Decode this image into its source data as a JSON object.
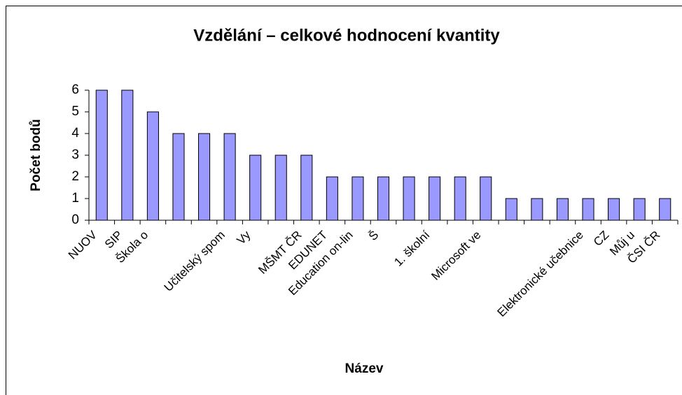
{
  "chart_data": {
    "type": "bar",
    "title": "Vzdělání – celkové hodnocení kvantity",
    "x_label": "Název",
    "y_label": "Počet bodů",
    "categories": [
      "NUOV",
      "SIP",
      "Škola o",
      null,
      null,
      "Učitelský spom",
      "Vy",
      null,
      "MŠMT ČR",
      "EDUNET",
      "Education on-lin",
      "Š",
      null,
      "1. školní",
      null,
      "Microsoft ve",
      null,
      null,
      null,
      "Elektronické učebnice",
      "CZ",
      "Můj u",
      "ČSI ČR"
    ],
    "values": [
      6,
      6,
      5,
      4,
      4,
      4,
      3,
      3,
      3,
      2,
      2,
      2,
      2,
      2,
      2,
      2,
      1,
      1,
      1,
      1,
      1,
      1,
      1
    ],
    "color": "#9999ff",
    "ylim": [
      0,
      6
    ],
    "yticks": [
      0,
      1,
      2,
      3,
      4,
      5,
      6
    ],
    "grid": false
  }
}
